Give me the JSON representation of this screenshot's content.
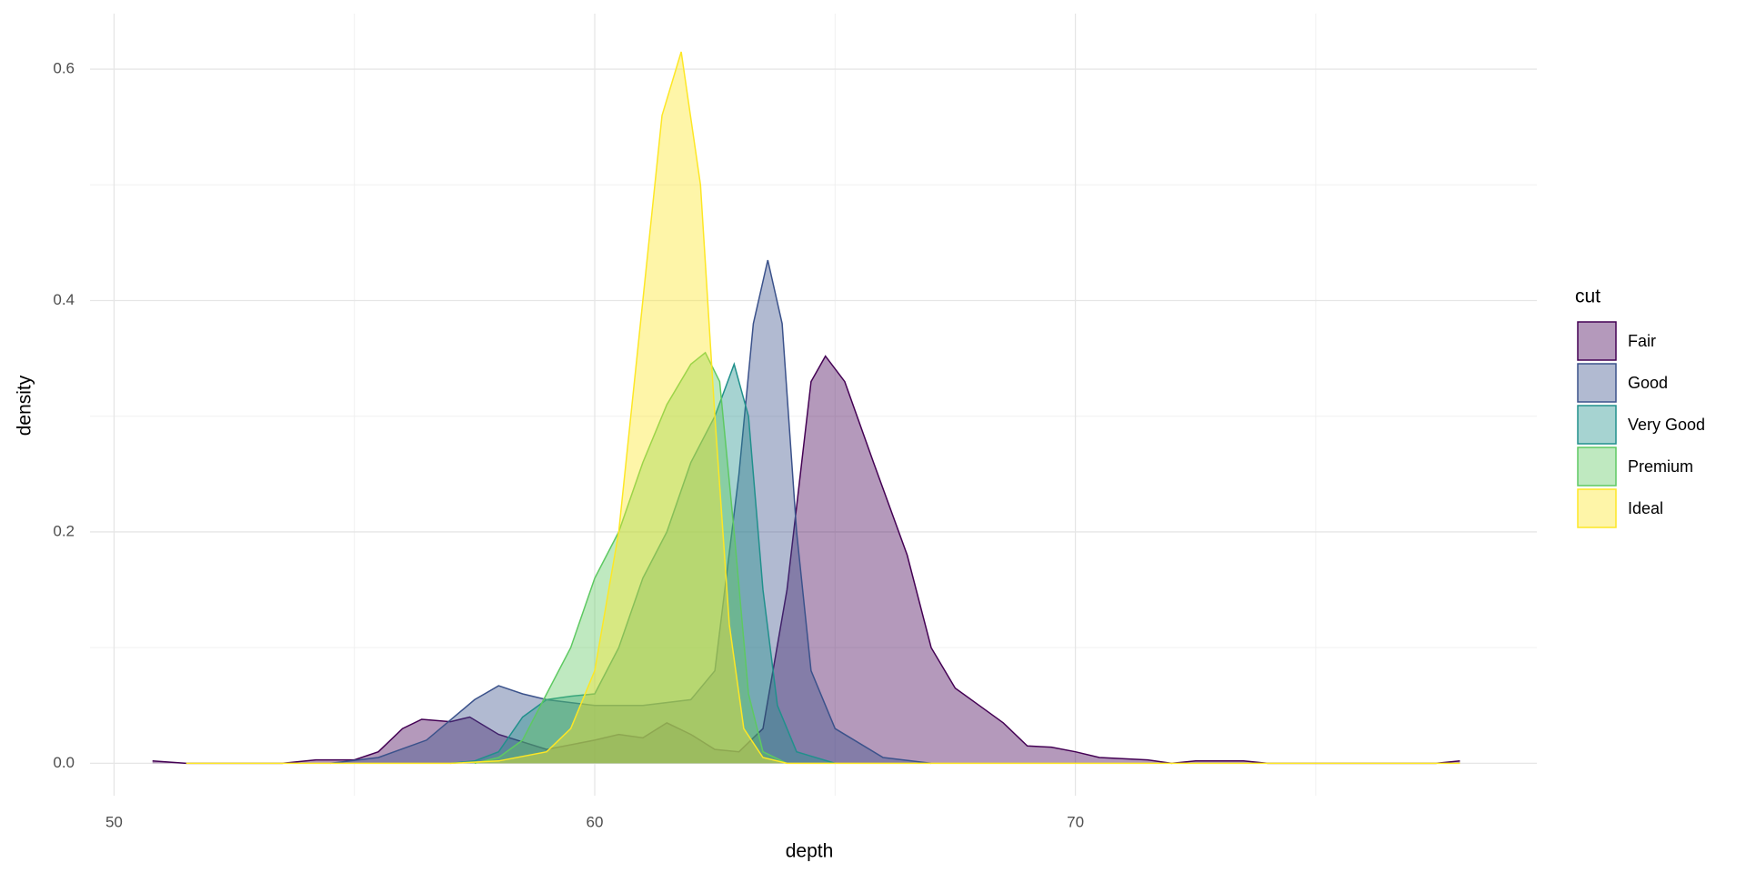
{
  "chart_data": {
    "type": "area",
    "x_label": "depth",
    "y_label": "density",
    "legend_title": "cut",
    "xlim": [
      49.5,
      79.6
    ],
    "ylim": [
      -0.028,
      0.648
    ],
    "xticks": [
      50,
      60,
      70
    ],
    "yticks": [
      {
        "value": 0,
        "label": "0.0"
      },
      0.2,
      0.4,
      0.6
    ],
    "x_minor_grid": [
      55,
      65,
      75
    ],
    "y_minor_grid": [
      0.1,
      0.3,
      0.5
    ],
    "grid": true,
    "alpha": 0.4,
    "legend": "right",
    "series": [
      {
        "name": "Fair",
        "color": "#440154",
        "x": [
          50.8,
          51.5,
          53.5,
          54.2,
          55,
          55.5,
          56,
          56.4,
          57,
          57.4,
          58,
          59,
          60,
          60.5,
          61,
          61.5,
          62,
          62.5,
          63,
          63.5,
          64,
          64.5,
          64.8,
          65.2,
          65.8,
          66.5,
          67,
          67.5,
          68,
          68.5,
          69,
          69.5,
          70,
          70.5,
          71.5,
          72,
          72.5,
          73.5,
          74,
          77.5,
          78
        ],
        "values": [
          0.002,
          0,
          0,
          0.003,
          0.003,
          0.01,
          0.03,
          0.038,
          0.036,
          0.04,
          0.025,
          0.012,
          0.02,
          0.025,
          0.022,
          0.035,
          0.025,
          0.012,
          0.01,
          0.03,
          0.15,
          0.33,
          0.352,
          0.33,
          0.26,
          0.18,
          0.1,
          0.065,
          0.05,
          0.035,
          0.015,
          0.014,
          0.01,
          0.005,
          0.003,
          0,
          0.002,
          0.002,
          0,
          0,
          0.002
        ]
      },
      {
        "name": "Good",
        "color": "#3b528b",
        "x": [
          54.5,
          55.5,
          56.5,
          57.5,
          58,
          58.5,
          59,
          60,
          61,
          62,
          62.5,
          63,
          63.3,
          63.6,
          63.9,
          64.2,
          64.5,
          65,
          66,
          67
        ],
        "values": [
          0,
          0.005,
          0.02,
          0.055,
          0.067,
          0.06,
          0.055,
          0.05,
          0.05,
          0.055,
          0.08,
          0.25,
          0.38,
          0.435,
          0.38,
          0.2,
          0.08,
          0.03,
          0.005,
          0
        ]
      },
      {
        "name": "Very Good",
        "color": "#21908c",
        "x": [
          57,
          57.5,
          58,
          58.5,
          59,
          59.5,
          60,
          60.5,
          61,
          61.5,
          62,
          62.5,
          62.9,
          63.2,
          63.5,
          63.8,
          64.2,
          65
        ],
        "values": [
          0,
          0.002,
          0.01,
          0.04,
          0.055,
          0.058,
          0.06,
          0.1,
          0.16,
          0.2,
          0.26,
          0.3,
          0.345,
          0.3,
          0.15,
          0.05,
          0.01,
          0
        ]
      },
      {
        "name": "Premium",
        "color": "#5ec962",
        "x": [
          57.5,
          58,
          58.5,
          59,
          59.5,
          60,
          60.5,
          61,
          61.5,
          62,
          62.3,
          62.6,
          62.9,
          63.2,
          63.5,
          64
        ],
        "values": [
          0,
          0.005,
          0.02,
          0.06,
          0.1,
          0.16,
          0.2,
          0.26,
          0.31,
          0.345,
          0.355,
          0.33,
          0.2,
          0.06,
          0.01,
          0
        ]
      },
      {
        "name": "Ideal",
        "color": "#fde725",
        "x": [
          51.5,
          57,
          58,
          59,
          59.5,
          60,
          60.5,
          61,
          61.4,
          61.8,
          62.2,
          62.5,
          62.8,
          63.1,
          63.5,
          64,
          78
        ],
        "values": [
          0,
          0,
          0.002,
          0.01,
          0.03,
          0.08,
          0.2,
          0.4,
          0.56,
          0.615,
          0.5,
          0.3,
          0.12,
          0.03,
          0.005,
          0,
          0
        ]
      }
    ]
  }
}
